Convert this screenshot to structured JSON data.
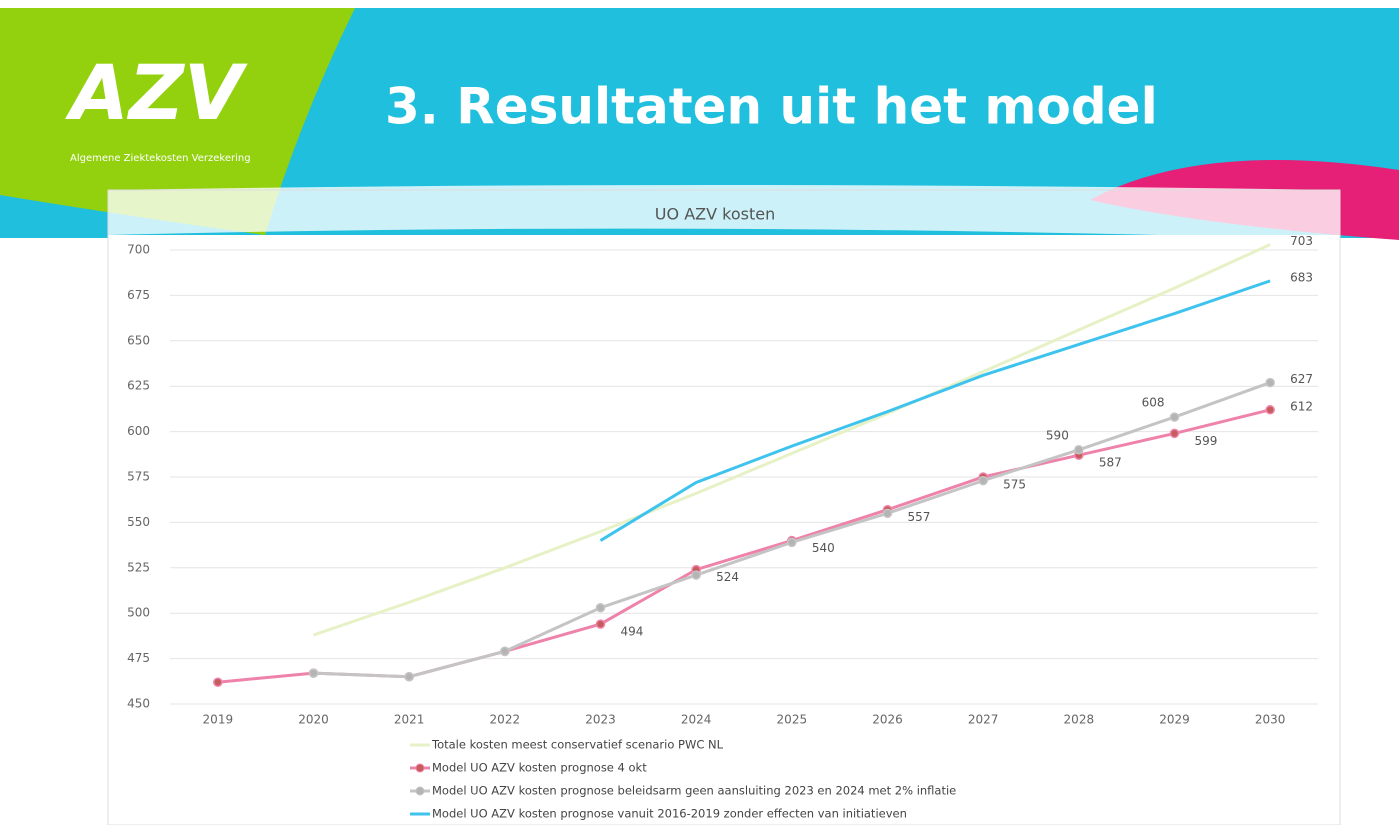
{
  "logo": "AZV",
  "logo_subtitle": "Algemene Ziektekosten Verzekering",
  "heading": "3. Resultaten uit het model",
  "chart_data": {
    "type": "line",
    "title": "UO AZV kosten",
    "categories": [
      "2019",
      "2020",
      "2021",
      "2022",
      "2023",
      "2024",
      "2025",
      "2026",
      "2027",
      "2028",
      "2029",
      "2030"
    ],
    "ylim": [
      450,
      700
    ],
    "yticks": [
      450,
      475,
      500,
      525,
      550,
      575,
      600,
      625,
      650,
      675,
      700
    ],
    "grid": true,
    "legend": "bottom",
    "series": [
      {
        "name": "Totale kosten meest conservatief scenario PWC NL",
        "color": "#e6f1c6",
        "markers": false,
        "values": [
          null,
          488,
          506,
          525,
          545,
          566,
          588,
          610,
          633,
          656,
          679,
          703
        ],
        "value_labels": [
          null,
          null,
          null,
          null,
          null,
          null,
          null,
          null,
          null,
          null,
          null,
          703
        ]
      },
      {
        "name": "Model UO AZV kosten prognose 4 okt",
        "color": "#ee82aa",
        "marker_color": "#c65c5c",
        "markers": true,
        "values": [
          462,
          467,
          465,
          479,
          494,
          524,
          540,
          557,
          575,
          587,
          599,
          612
        ],
        "value_labels": [
          null,
          null,
          null,
          null,
          494,
          524,
          540,
          557,
          575,
          587,
          599,
          612
        ]
      },
      {
        "name": "Model UO AZV kosten prognose beleidsarm geen aansluiting 2023 en 2024 met 2% inflatie",
        "color": "#c4c4c4",
        "marker_color": "#b4b4b4",
        "markers": true,
        "values": [
          null,
          467,
          465,
          479,
          503,
          521,
          539,
          555,
          573,
          590,
          608,
          627
        ],
        "value_labels": [
          null,
          null,
          null,
          null,
          null,
          null,
          null,
          null,
          null,
          590,
          608,
          627
        ]
      },
      {
        "name": "Model UO AZV kosten prognose vanuit 2016-2019 zonder effecten van initiatieven",
        "color": "#3ec3ee",
        "markers": false,
        "values": [
          null,
          null,
          null,
          null,
          540,
          572,
          592,
          611,
          631,
          648,
          665,
          683
        ],
        "value_labels": [
          null,
          null,
          null,
          null,
          null,
          null,
          null,
          null,
          null,
          null,
          null,
          683
        ]
      }
    ]
  }
}
